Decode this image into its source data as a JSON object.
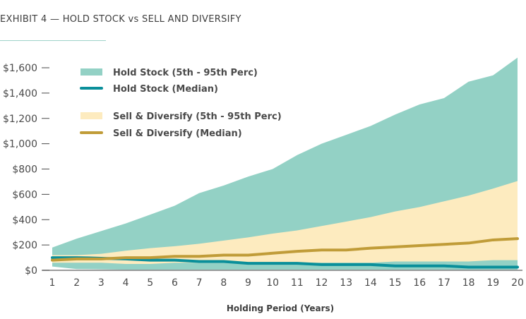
{
  "chart_data": {
    "type": "area",
    "title": "EXHIBIT 4 — HOLD STOCK vs SELL AND DIVERSIFY",
    "xlabel": "Holding Period (Years)",
    "ylabel": "",
    "x": [
      1,
      2,
      3,
      4,
      5,
      6,
      7,
      8,
      9,
      10,
      11,
      12,
      13,
      14,
      15,
      16,
      17,
      18,
      19,
      20
    ],
    "ylim": [
      0,
      1600
    ],
    "yticks": [
      0,
      200,
      400,
      600,
      800,
      1000,
      1200,
      1400,
      1600
    ],
    "ytick_labels": [
      "$0",
      "$200",
      "$400",
      "$600",
      "$800",
      "$1,000",
      "$1,200",
      "$1,400",
      "$1,600"
    ],
    "xtick_labels": [
      "1",
      "2",
      "3",
      "4",
      "5",
      "6",
      "7",
      "8",
      "9",
      "10",
      "11",
      "12",
      "13",
      "14",
      "15",
      "16",
      "17",
      "18",
      "19",
      "20"
    ],
    "grid": false,
    "legend_position": "top-left",
    "series": [
      {
        "name": "Hold Stock (5th - 95th Perc)",
        "kind": "band",
        "color": "#93d1c5",
        "low": [
          30,
          10,
          8,
          5,
          5,
          5,
          5,
          5,
          5,
          5,
          5,
          5,
          5,
          5,
          5,
          5,
          5,
          5,
          5,
          5
        ],
        "high": [
          180,
          250,
          310,
          370,
          440,
          510,
          610,
          670,
          740,
          800,
          910,
          1000,
          1070,
          1140,
          1230,
          1310,
          1360,
          1490,
          1540,
          1680
        ]
      },
      {
        "name": "Hold Stock (Median)",
        "kind": "line",
        "color": "#0a8f9a",
        "values": [
          100,
          100,
          95,
          90,
          80,
          80,
          70,
          70,
          55,
          55,
          55,
          45,
          45,
          45,
          35,
          35,
          35,
          25,
          25,
          25
        ]
      },
      {
        "name": "Sell & Diversify (5th - 95th Perc)",
        "kind": "band",
        "color": "#fdebbf",
        "low": [
          60,
          60,
          60,
          50,
          50,
          60,
          60,
          60,
          60,
          60,
          60,
          60,
          60,
          60,
          70,
          70,
          70,
          70,
          80,
          80
        ],
        "high": [
          120,
          120,
          130,
          155,
          175,
          190,
          210,
          235,
          260,
          290,
          315,
          350,
          385,
          420,
          465,
          500,
          545,
          590,
          645,
          705
        ]
      },
      {
        "name": "Sell & Diversify (Median)",
        "kind": "line",
        "color": "#c09c38",
        "values": [
          80,
          90,
          90,
          100,
          100,
          110,
          110,
          120,
          120,
          135,
          150,
          160,
          160,
          175,
          185,
          195,
          205,
          215,
          240,
          250
        ]
      }
    ]
  }
}
